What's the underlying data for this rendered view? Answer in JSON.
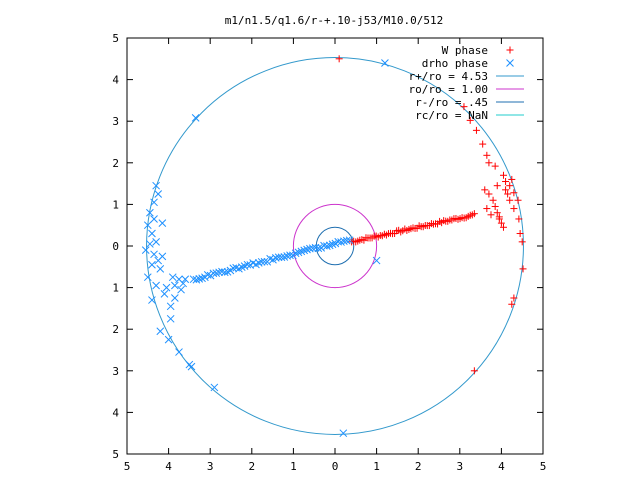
{
  "chart_data": {
    "type": "scatter",
    "title": "m1/n1.5/q1.6/r-+.10-j53/M10.0/512",
    "xlabel": "",
    "ylabel": "",
    "xlim": [
      -5,
      5
    ],
    "ylim": [
      -5,
      5
    ],
    "x_ticks": [
      -5,
      -4,
      -3,
      -2,
      -1,
      0,
      1,
      2,
      3,
      4,
      5
    ],
    "y_ticks": [
      -5,
      -4,
      -3,
      -2,
      -1,
      0,
      1,
      2,
      3,
      4,
      5
    ],
    "x_tick_labels": [
      "5",
      "4",
      "3",
      "2",
      "1",
      "0",
      "1",
      "2",
      "3",
      "4",
      "5"
    ],
    "y_tick_labels": [
      "5",
      "4",
      "3",
      "2",
      "1",
      "0",
      "1",
      "2",
      "3",
      "4",
      "5"
    ],
    "grid": false,
    "legend_position": "top-right",
    "legend": [
      {
        "label": "W phase",
        "kind": "plus",
        "color": "#ff0000"
      },
      {
        "label": "drho phase",
        "kind": "cross",
        "color": "#1e90ff"
      },
      {
        "label": "r+/ro = 4.53",
        "kind": "line",
        "color": "#3399cc"
      },
      {
        "label": "ro/ro = 1.00",
        "kind": "line",
        "color": "#cc33cc"
      },
      {
        "label": "r-/ro = .45",
        "kind": "line",
        "color": "#1f6fb0"
      },
      {
        "label": "rc/ro = NaN",
        "kind": "line",
        "color": "#22cccc"
      }
    ],
    "circles": [
      {
        "name": "r+/ro = 4.53",
        "radius": 4.53,
        "color": "#3399cc"
      },
      {
        "name": "ro/ro = 1.00",
        "radius": 1.0,
        "color": "#cc33cc"
      },
      {
        "name": "r-/ro = .45",
        "radius": 0.45,
        "color": "#1f6fb0"
      }
    ],
    "series": [
      {
        "name": "W phase",
        "marker": "plus",
        "color": "#ff0000",
        "points": [
          [
            0.1,
            4.5
          ],
          [
            3.35,
            -3.0
          ],
          [
            3.1,
            3.35
          ],
          [
            3.25,
            3.02
          ],
          [
            3.4,
            2.78
          ],
          [
            3.55,
            2.45
          ],
          [
            3.65,
            2.18
          ],
          [
            3.7,
            2.0
          ],
          [
            3.85,
            1.92
          ],
          [
            4.05,
            1.7
          ],
          [
            4.1,
            1.55
          ],
          [
            4.25,
            1.6
          ],
          [
            4.2,
            1.45
          ],
          [
            3.9,
            1.45
          ],
          [
            4.1,
            1.35
          ],
          [
            4.3,
            1.28
          ],
          [
            4.4,
            1.1
          ],
          [
            4.3,
            0.9
          ],
          [
            4.42,
            0.65
          ],
          [
            4.45,
            0.3
          ],
          [
            4.5,
            0.1
          ],
          [
            4.52,
            -0.55
          ],
          [
            4.3,
            -1.25
          ],
          [
            4.25,
            -1.4
          ],
          [
            3.6,
            1.35
          ],
          [
            3.7,
            1.25
          ],
          [
            3.8,
            1.1
          ],
          [
            3.85,
            0.95
          ],
          [
            3.9,
            0.8
          ],
          [
            3.95,
            0.65
          ],
          [
            4.0,
            0.55
          ],
          [
            4.05,
            0.45
          ],
          [
            3.75,
            0.75
          ],
          [
            3.65,
            0.9
          ],
          [
            3.95,
            0.7
          ],
          [
            4.15,
            1.25
          ],
          [
            4.2,
            1.1
          ]
        ],
        "ridge": {
          "from": [
            0.4,
            0.1
          ],
          "to": [
            3.35,
            0.75
          ],
          "count": 60,
          "jitter": 0.03
        }
      },
      {
        "name": "drho phase",
        "marker": "cross",
        "color": "#1e90ff",
        "points": [
          [
            1.2,
            4.4
          ],
          [
            -3.35,
            3.08
          ],
          [
            -4.3,
            1.45
          ],
          [
            -4.25,
            1.25
          ],
          [
            -4.35,
            1.05
          ],
          [
            -4.45,
            0.8
          ],
          [
            -4.5,
            0.5
          ],
          [
            -4.4,
            0.3
          ],
          [
            -4.45,
            0.05
          ],
          [
            -4.55,
            -0.1
          ],
          [
            -4.35,
            -0.2
          ],
          [
            -4.4,
            -0.45
          ],
          [
            -4.2,
            -0.55
          ],
          [
            -4.5,
            -0.75
          ],
          [
            -4.3,
            -0.95
          ],
          [
            -4.4,
            -1.3
          ],
          [
            -4.05,
            -1.0
          ],
          [
            -4.1,
            -1.15
          ],
          [
            -3.85,
            -1.25
          ],
          [
            -3.95,
            -1.45
          ],
          [
            -3.95,
            -1.75
          ],
          [
            -4.2,
            -2.05
          ],
          [
            -4.0,
            -2.25
          ],
          [
            -3.75,
            -2.55
          ],
          [
            -3.5,
            -2.85
          ],
          [
            -3.45,
            -2.9
          ],
          [
            -2.9,
            -3.4
          ],
          [
            0.2,
            -4.5
          ],
          [
            1.0,
            -0.35
          ],
          [
            -4.3,
            0.1
          ],
          [
            -4.25,
            -0.35
          ],
          [
            -4.15,
            -0.25
          ],
          [
            -3.9,
            -0.75
          ],
          [
            -3.75,
            -0.8
          ],
          [
            -3.6,
            -0.8
          ],
          [
            -3.7,
            -1.05
          ],
          [
            -3.85,
            -0.95
          ],
          [
            -3.65,
            -0.9
          ],
          [
            -4.15,
            0.55
          ],
          [
            -4.35,
            0.65
          ]
        ],
        "ridge": {
          "from": [
            0.35,
            0.15
          ],
          "to": [
            -3.4,
            -0.8
          ],
          "count": 55,
          "jitter": 0.03
        }
      }
    ]
  }
}
